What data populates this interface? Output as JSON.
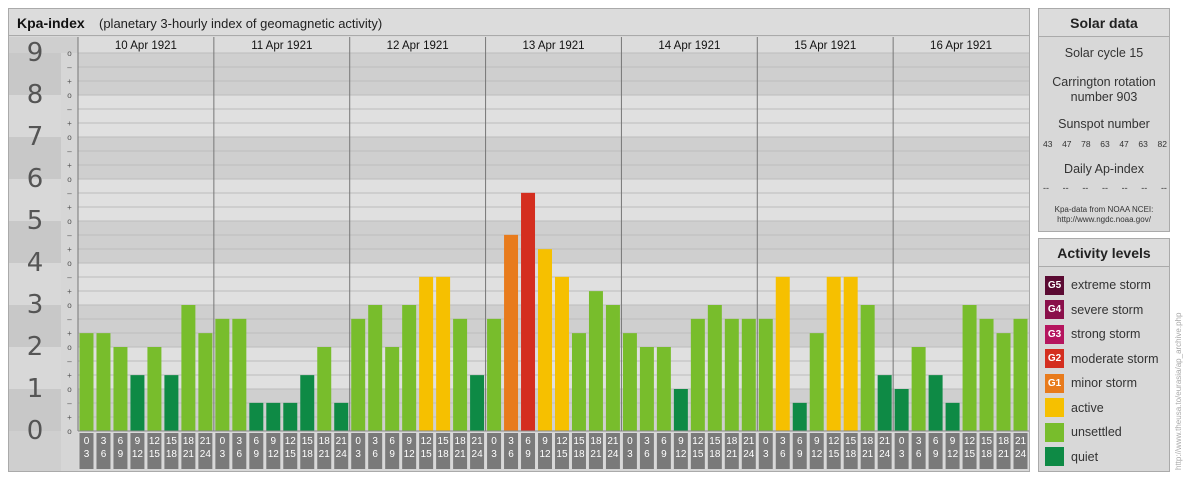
{
  "chart_data": {
    "type": "bar",
    "title": "Kpa-index",
    "subtitle": "(planetary 3-hourly index of geomagnetic activity)",
    "ylim": [
      0,
      9
    ],
    "y_ticks": [
      "0",
      "1",
      "2",
      "3",
      "4",
      "5",
      "6",
      "7",
      "8",
      "9"
    ],
    "minor_marks": [
      "o",
      "+",
      "–"
    ],
    "days": [
      "10 Apr 1921",
      "11 Apr 1921",
      "12 Apr 1921",
      "13 Apr 1921",
      "14 Apr 1921",
      "15 Apr 1921",
      "16 Apr 1921"
    ],
    "interval_labels": [
      [
        "0",
        "3"
      ],
      [
        "3",
        "6"
      ],
      [
        "6",
        "9"
      ],
      [
        "9",
        "12"
      ],
      [
        "12",
        "15"
      ],
      [
        "15",
        "18"
      ],
      [
        "18",
        "21"
      ],
      [
        "21",
        "24"
      ]
    ],
    "values": [
      [
        2.33,
        2.33,
        2.0,
        1.33,
        2.0,
        1.33,
        3.0,
        2.33
      ],
      [
        2.67,
        2.67,
        0.67,
        0.67,
        0.67,
        1.33,
        2.0,
        0.67
      ],
      [
        2.67,
        3.0,
        2.0,
        3.0,
        3.67,
        3.67,
        2.67,
        1.33
      ],
      [
        2.67,
        4.67,
        5.67,
        4.33,
        3.67,
        2.33,
        3.33,
        3.0
      ],
      [
        2.33,
        2.0,
        2.0,
        1.0,
        2.67,
        3.0,
        2.67,
        2.67
      ],
      [
        2.67,
        3.67,
        0.67,
        2.33,
        3.67,
        3.67,
        3.0,
        1.33
      ],
      [
        1.0,
        2.0,
        1.33,
        0.67,
        3.0,
        2.67,
        2.33,
        2.67
      ]
    ],
    "grid": true
  },
  "solar": {
    "heading": "Solar data",
    "cycle": "Solar cycle 15",
    "carrington_line1": "Carrington rotation",
    "carrington_line2": "number 903",
    "sunspot_heading": "Sunspot number",
    "sunspot_values": [
      "43",
      "47",
      "78",
      "63",
      "47",
      "63",
      "82"
    ],
    "ap_heading": "Daily Ap-index",
    "ap_values": [
      "--",
      "--",
      "--",
      "--",
      "--",
      "--",
      "--"
    ],
    "source_line1": "Kpa-data from NOAA NCEI:",
    "source_line2": "http://www.ngdc.noaa.gov/"
  },
  "legend": {
    "heading": "Activity levels",
    "items": [
      {
        "code": "G5",
        "label": "extreme storm",
        "color": "#5a0a32"
      },
      {
        "code": "G4",
        "label": "severe storm",
        "color": "#8a0f4a"
      },
      {
        "code": "G3",
        "label": "strong storm",
        "color": "#b5155e"
      },
      {
        "code": "G2",
        "label": "moderate storm",
        "color": "#d42e1f"
      },
      {
        "code": "G1",
        "label": "minor storm",
        "color": "#e87b1c"
      },
      {
        "code": "",
        "label": "active",
        "color": "#f6c000"
      },
      {
        "code": "",
        "label": "unsettled",
        "color": "#78bd2c"
      },
      {
        "code": "",
        "label": "quiet",
        "color": "#0e8a45"
      }
    ]
  },
  "watermark": "http://www.theusa.to/eurasia/ap_archive.php"
}
